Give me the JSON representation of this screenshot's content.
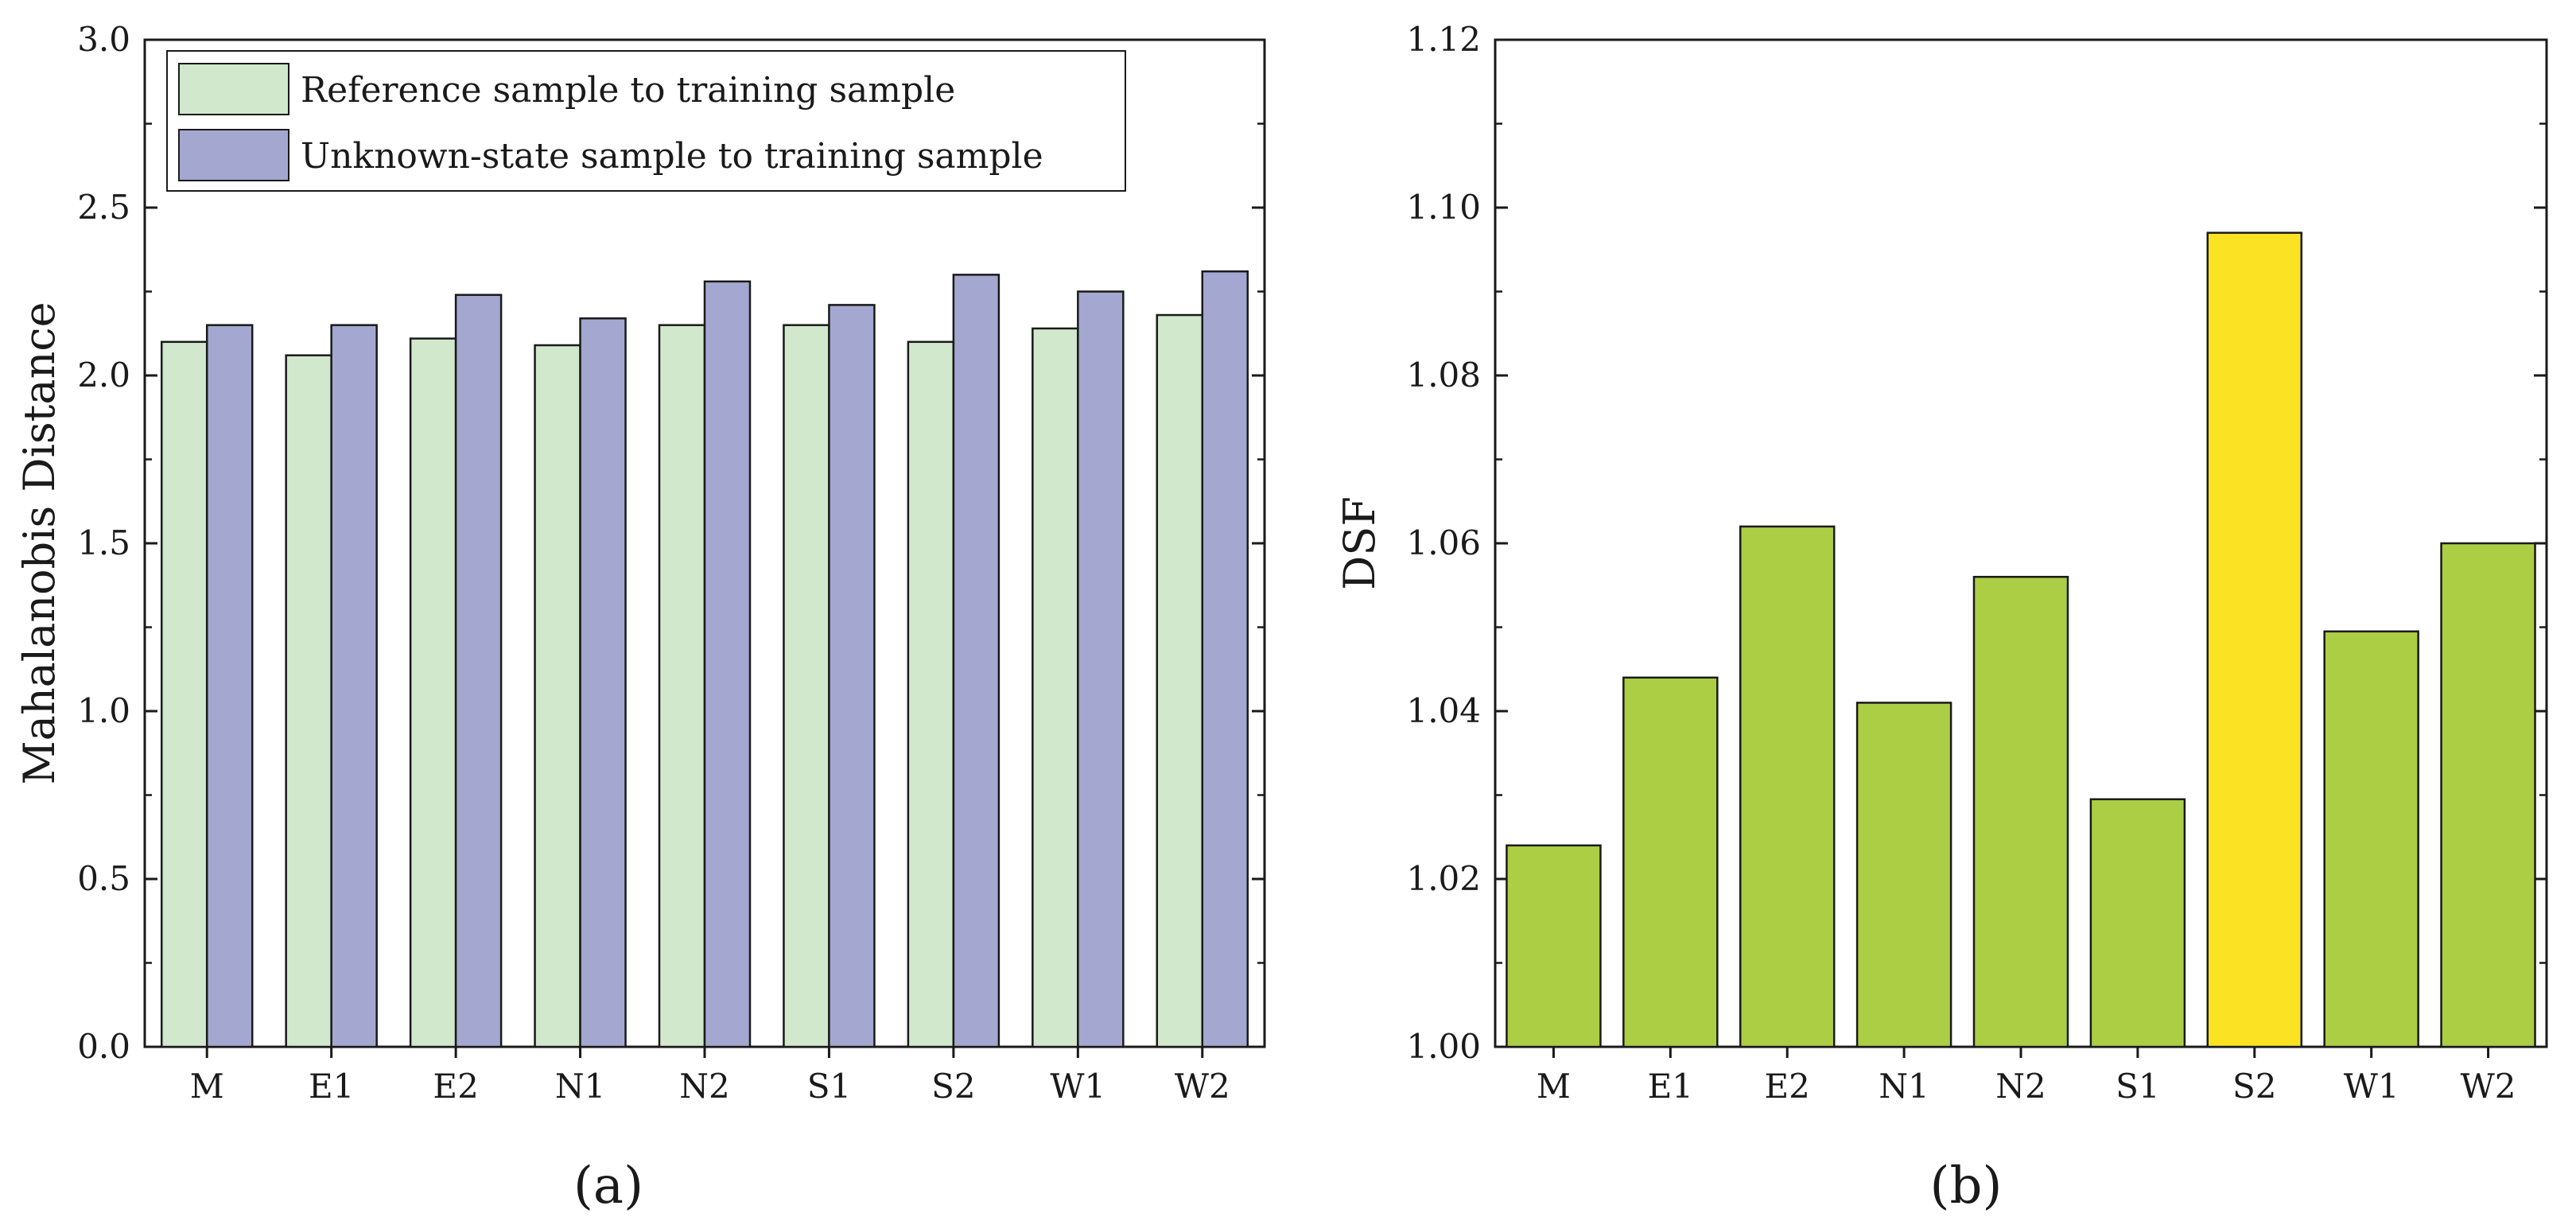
{
  "chart_data": [
    {
      "type": "bar",
      "panel_label": "(a)",
      "categories": [
        "M",
        "E1",
        "E2",
        "N1",
        "N2",
        "S1",
        "S2",
        "W1",
        "W2"
      ],
      "series": [
        {
          "name": "Reference sample to training sample",
          "color": "#d1e8cc",
          "values": [
            2.1,
            2.06,
            2.11,
            2.09,
            2.15,
            2.15,
            2.1,
            2.14,
            2.18
          ]
        },
        {
          "name": "Unknown-state sample to training sample",
          "color": "#a4a8d0",
          "values": [
            2.15,
            2.15,
            2.24,
            2.17,
            2.28,
            2.21,
            2.3,
            2.25,
            2.31
          ]
        }
      ],
      "ylabel": "Mahalanobis Distance",
      "xlabel": "",
      "ylim": [
        0.0,
        3.0
      ],
      "yticks": [
        "0.0",
        "0.5",
        "1.0",
        "1.5",
        "2.0",
        "2.5",
        "3.0"
      ],
      "legend_position": "top-left"
    },
    {
      "type": "bar",
      "panel_label": "(b)",
      "categories": [
        "M",
        "E1",
        "E2",
        "N1",
        "N2",
        "S1",
        "S2",
        "W1",
        "W2"
      ],
      "values": [
        1.024,
        1.044,
        1.062,
        1.041,
        1.056,
        1.0295,
        1.097,
        1.0495,
        1.06
      ],
      "colors": [
        "#abce44",
        "#abce44",
        "#abce44",
        "#abce44",
        "#abce44",
        "#abce44",
        "#fbe223",
        "#abce44",
        "#abce44"
      ],
      "ylabel": "DSF",
      "xlabel": "",
      "ylim": [
        1.0,
        1.12
      ],
      "yticks": [
        "1.00",
        "1.02",
        "1.04",
        "1.06",
        "1.08",
        "1.10",
        "1.12"
      ]
    }
  ]
}
